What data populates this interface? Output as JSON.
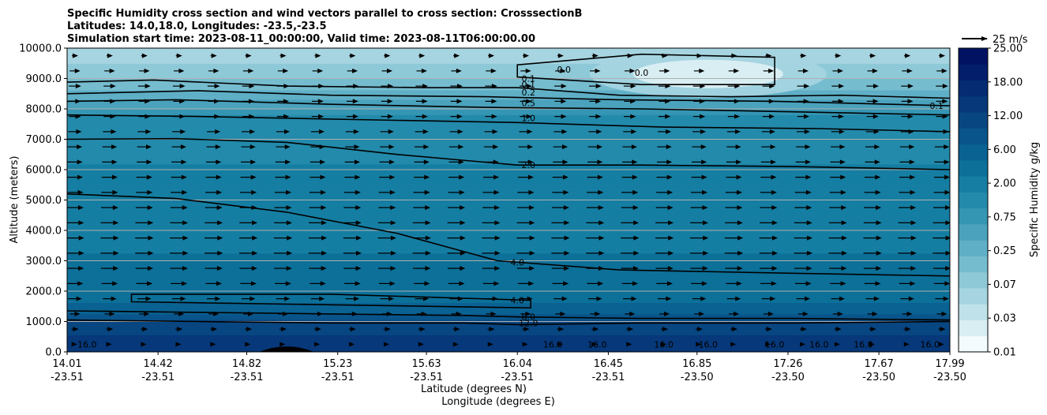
{
  "chart_data": {
    "type": "heatmap",
    "title": [
      "Specific Humidity cross section and wind vectors parallel to cross section: CrosssectionB",
      "Latitudes: 14.0,18.0, Longitudes: -23.5,-23.5",
      "Simulation start time: 2023-08-11_00:00:00, Valid time: 2023-08-11T06:00:00.00"
    ],
    "ylabel": "Altitude (meters)",
    "xlabel_lat": "Latitude (degrees N)",
    "xlabel_lon": "Longitude (degrees E)",
    "ylim": [
      0,
      10000
    ],
    "y_ticks": [
      "0.0",
      "1000.0",
      "2000.0",
      "3000.0",
      "4000.0",
      "5000.0",
      "6000.0",
      "7000.0",
      "8000.0",
      "9000.0",
      "10000.0"
    ],
    "x_ticks": [
      {
        "lat": "14.01",
        "lon": "-23.51"
      },
      {
        "lat": "14.42",
        "lon": "-23.51"
      },
      {
        "lat": "14.82",
        "lon": "-23.51"
      },
      {
        "lat": "15.23",
        "lon": "-23.51"
      },
      {
        "lat": "15.63",
        "lon": "-23.51"
      },
      {
        "lat": "16.04",
        "lon": "-23.51"
      },
      {
        "lat": "16.45",
        "lon": "-23.51"
      },
      {
        "lat": "16.85",
        "lon": "-23.50"
      },
      {
        "lat": "17.26",
        "lon": "-23.50"
      },
      {
        "lat": "17.67",
        "lon": "-23.50"
      },
      {
        "lat": "17.99",
        "lon": "-23.50"
      }
    ],
    "grid": "horizontal",
    "colorbar": {
      "label": "Specific Humidity g/kg",
      "levels": [
        0.01,
        0.02,
        0.03,
        0.05,
        0.07,
        0.1,
        0.25,
        0.5,
        0.75,
        1.0,
        2.0,
        4.0,
        6.0,
        8.0,
        12.0,
        16.0,
        18.0,
        20.0,
        25.0
      ],
      "tick_labels": [
        "0.01",
        "0.03",
        "0.07",
        "0.25",
        "0.75",
        "2.00",
        "6.00",
        "12.00",
        "18.00",
        "25.00"
      ],
      "colors": [
        "#f4fbfd",
        "#d9eef3",
        "#bfe2ea",
        "#a6d5e1",
        "#8ec9d8",
        "#76bccf",
        "#5fafc6",
        "#4aa2bd",
        "#3596b4",
        "#238aab",
        "#157ea2",
        "#0c7099",
        "#0a6292",
        "#09548a",
        "#084682",
        "#07387a",
        "#052b72",
        "#031e6a",
        "#021263"
      ]
    },
    "quiver_key": {
      "label": "25 m/s",
      "speed": 25
    },
    "humidity_layers": [
      {
        "alt": 0,
        "value": 18.0
      },
      {
        "alt": 500,
        "value": 16.5
      },
      {
        "alt": 1000,
        "value": 13.0
      },
      {
        "alt": 1200,
        "value": 8.5
      },
      {
        "alt": 1600,
        "value": 6.0
      },
      {
        "alt": 2600,
        "value": 4.5
      },
      {
        "alt": 4000,
        "value": 3.5
      },
      {
        "alt": 5500,
        "value": 2.5
      },
      {
        "alt": 6200,
        "value": 2.0
      },
      {
        "alt": 7000,
        "value": 1.5
      },
      {
        "alt": 7800,
        "value": 1.0
      },
      {
        "alt": 8300,
        "value": 0.5
      },
      {
        "alt": 8600,
        "value": 0.25
      },
      {
        "alt": 9000,
        "value": 0.1
      },
      {
        "alt": 9500,
        "value": 0.07
      },
      {
        "alt": 10000,
        "value": 0.05
      }
    ],
    "dry_pocket": {
      "center_lat": 16.9,
      "center_alt": 9150,
      "value": 0.02
    },
    "contours": [
      {
        "label": "0.1",
        "points": [
          [
            14.01,
            8880
          ],
          [
            14.4,
            8950
          ],
          [
            15.0,
            8750
          ],
          [
            15.63,
            8700
          ],
          [
            16.04,
            8700
          ],
          [
            16.5,
            8450
          ],
          [
            17.0,
            8400
          ],
          [
            17.5,
            8450
          ],
          [
            17.99,
            8350
          ]
        ]
      },
      {
        "label": "0.2",
        "points": [
          [
            14.01,
            8500
          ],
          [
            14.6,
            8600
          ],
          [
            15.2,
            8450
          ],
          [
            15.9,
            8400
          ],
          [
            16.5,
            8300
          ],
          [
            17.2,
            8250
          ],
          [
            17.99,
            8100
          ]
        ]
      },
      {
        "label": "0.5",
        "points": [
          [
            14.01,
            8250
          ],
          [
            14.5,
            8300
          ],
          [
            15.2,
            8150
          ],
          [
            15.9,
            8050
          ],
          [
            16.6,
            8000
          ],
          [
            17.3,
            7900
          ],
          [
            17.99,
            7800
          ]
        ]
      },
      {
        "label": "1.0",
        "points": [
          [
            14.01,
            7800
          ],
          [
            14.6,
            7750
          ],
          [
            15.3,
            7650
          ],
          [
            16.04,
            7550
          ],
          [
            16.7,
            7400
          ],
          [
            17.4,
            7350
          ],
          [
            17.99,
            7250
          ]
        ]
      },
      {
        "label": "2.0",
        "points": [
          [
            14.01,
            7000
          ],
          [
            14.5,
            7020
          ],
          [
            15.0,
            6900
          ],
          [
            15.5,
            6500
          ],
          [
            16.04,
            6150
          ],
          [
            16.6,
            6150
          ],
          [
            17.3,
            6100
          ],
          [
            17.99,
            6000
          ]
        ]
      },
      {
        "label": "4.0",
        "points": [
          [
            14.01,
            5200
          ],
          [
            14.5,
            5050
          ],
          [
            15.0,
            4600
          ],
          [
            15.5,
            3900
          ],
          [
            15.95,
            3000
          ],
          [
            16.5,
            2700
          ],
          [
            17.2,
            2600
          ],
          [
            17.99,
            2500
          ]
        ]
      },
      {
        "label": "8.0",
        "points": [
          [
            14.01,
            1350
          ],
          [
            14.6,
            1300
          ],
          [
            15.2,
            1250
          ],
          [
            15.8,
            1200
          ],
          [
            16.04,
            1150
          ],
          [
            16.6,
            1100
          ],
          [
            17.3,
            1100
          ],
          [
            17.99,
            1050
          ]
        ]
      },
      {
        "label": "12.0",
        "points": [
          [
            14.01,
            1050
          ],
          [
            14.6,
            1000
          ],
          [
            15.2,
            950
          ],
          [
            15.8,
            950
          ],
          [
            16.04,
            900
          ],
          [
            16.6,
            950
          ],
          [
            17.3,
            950
          ],
          [
            17.99,
            1000
          ]
        ]
      }
    ],
    "closed_contours": [
      {
        "label": "0.0",
        "points": [
          [
            16.04,
            9450
          ],
          [
            16.6,
            9800
          ],
          [
            17.2,
            9700
          ],
          [
            17.2,
            8800
          ],
          [
            16.6,
            8800
          ],
          [
            16.04,
            9050
          ]
        ]
      },
      {
        "label": "4.0",
        "points": [
          [
            14.3,
            1900
          ],
          [
            15.2,
            1900
          ],
          [
            16.1,
            1700
          ],
          [
            16.1,
            1450
          ],
          [
            15.2,
            1550
          ],
          [
            14.3,
            1650
          ]
        ]
      }
    ],
    "contour_labels": [
      {
        "text": "0.1",
        "lat": 16.09,
        "alt": 8800
      },
      {
        "text": "0.1",
        "lat": 16.09,
        "alt": 9000
      },
      {
        "text": "0.2",
        "lat": 16.09,
        "alt": 8550
      },
      {
        "text": "0.5",
        "lat": 16.09,
        "alt": 8200
      },
      {
        "text": "1.0",
        "lat": 16.09,
        "alt": 7700
      },
      {
        "text": "2.0",
        "lat": 16.09,
        "alt": 6150
      },
      {
        "text": "4.0",
        "lat": 16.04,
        "alt": 2950
      },
      {
        "text": "4.0",
        "lat": 16.04,
        "alt": 1700
      },
      {
        "text": "8.0",
        "lat": 16.09,
        "alt": 1150
      },
      {
        "text": "12.0",
        "lat": 16.09,
        "alt": 950
      },
      {
        "text": "0.0",
        "lat": 16.25,
        "alt": 9300
      },
      {
        "text": "0.0",
        "lat": 16.6,
        "alt": 9200
      },
      {
        "text": "0.1",
        "lat": 17.93,
        "alt": 8100
      },
      {
        "text": "16.0",
        "lat": 14.1,
        "alt": 250
      },
      {
        "text": "16.0",
        "lat": 16.2,
        "alt": 250
      },
      {
        "text": "16.0",
        "lat": 16.4,
        "alt": 250
      },
      {
        "text": "16.0",
        "lat": 16.7,
        "alt": 250
      },
      {
        "text": "16.0",
        "lat": 16.9,
        "alt": 250
      },
      {
        "text": "16.0",
        "lat": 17.2,
        "alt": 250
      },
      {
        "text": "16.0",
        "lat": 17.4,
        "alt": 250
      },
      {
        "text": "16.0",
        "lat": 17.6,
        "alt": 250
      },
      {
        "text": "16.0",
        "lat": 17.9,
        "alt": 250
      }
    ],
    "terrain_peak": {
      "lat": 15.0,
      "alt": 200
    },
    "wind": {
      "columns": 26,
      "rows": 20,
      "speed_profile": [
        {
          "alt": 0,
          "u": 2
        },
        {
          "alt": 1000,
          "u": 6
        },
        {
          "alt": 2000,
          "u": 11
        },
        {
          "alt": 3000,
          "u": 13
        },
        {
          "alt": 4000,
          "u": 13
        },
        {
          "alt": 5000,
          "u": 12
        },
        {
          "alt": 6000,
          "u": 11
        },
        {
          "alt": 7000,
          "u": 10
        },
        {
          "alt": 8000,
          "u": 8
        },
        {
          "alt": 9000,
          "u": 9
        },
        {
          "alt": 10000,
          "u": 3
        }
      ]
    }
  }
}
